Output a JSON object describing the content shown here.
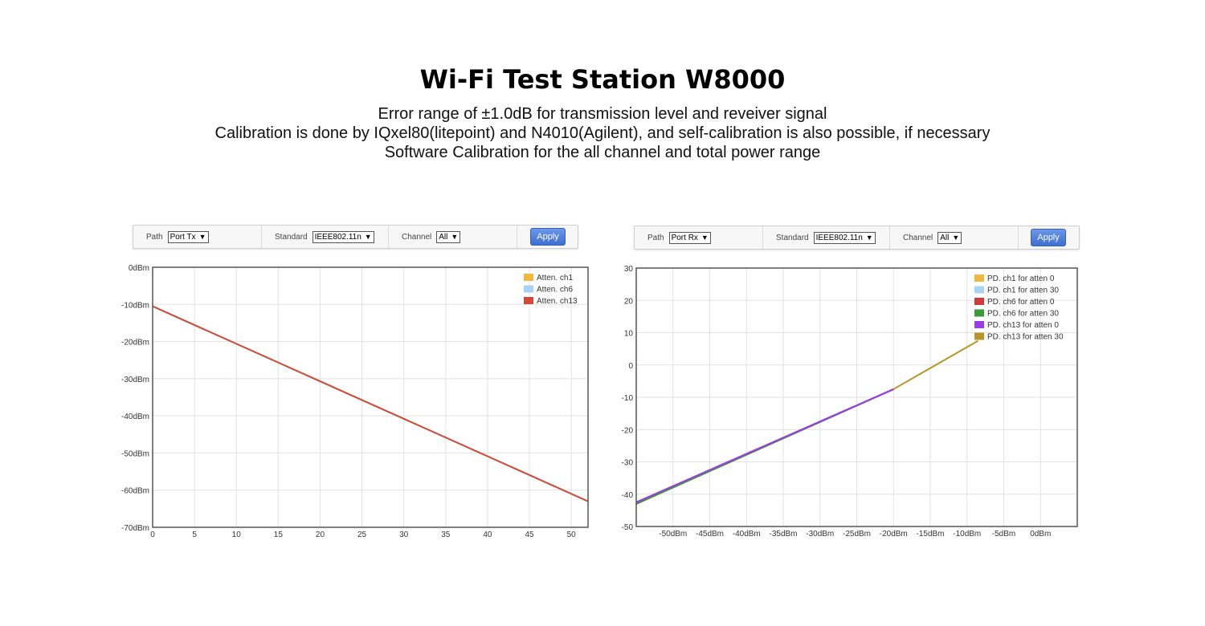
{
  "header": {
    "title": "Wi-Fi Test Station W8000",
    "lines": [
      "Error range of ±1.0dB for transmission level and reveiver signal",
      "Calibration is done by IQxel80(litepoint) and N4010(Agilent), and self-calibration is also possible, if necessary",
      "Software Calibration for the all channel and total power range"
    ]
  },
  "tx_toolbar": {
    "path_label": "Path",
    "path_value": "Port Tx",
    "standard_label": "Standard",
    "standard_value": "IEEE802.11n",
    "channel_label": "Channel",
    "channel_value": "All",
    "apply_label": "Apply"
  },
  "rx_toolbar": {
    "path_label": "Path",
    "path_value": "Port Rx",
    "standard_label": "Standard",
    "standard_value": "IEEE802.11n",
    "channel_label": "Channel",
    "channel_value": "All",
    "apply_label": "Apply"
  },
  "colors": {
    "accent": "#3f6fd0",
    "grid": "#e2e2e2",
    "frame": "#555555"
  },
  "chart_data": [
    {
      "type": "line",
      "title": "",
      "xlabel": "",
      "ylabel": "",
      "xlim": [
        0,
        52
      ],
      "ylim": [
        -70,
        0
      ],
      "grid": true,
      "legend": "top-right",
      "x_ticks": [
        0,
        5,
        10,
        15,
        20,
        25,
        30,
        35,
        40,
        45,
        50
      ],
      "x_tick_labels": [
        "0",
        "5",
        "10",
        "15",
        "20",
        "25",
        "30",
        "35",
        "40",
        "45",
        "50"
      ],
      "y_ticks": [
        0,
        -10,
        -20,
        -30,
        -40,
        -50,
        -60,
        -70
      ],
      "y_tick_labels": [
        "0dBm",
        "-10dBm",
        "-20dBm",
        "-30dBm",
        "-40dBm",
        "-50dBm",
        "-60dBm",
        "-70dBm"
      ],
      "series": [
        {
          "name": "Atten. ch1",
          "color": "#f0b840",
          "x": [
            0,
            52
          ],
          "y": [
            -10.5,
            -63.0
          ]
        },
        {
          "name": "Atten. ch6",
          "color": "#a9d3f5",
          "x": [
            0,
            52
          ],
          "y": [
            -10.5,
            -63.0
          ]
        },
        {
          "name": "Atten. ch13",
          "color": "#d04a3a",
          "x": [
            0,
            52
          ],
          "y": [
            -10.5,
            -63.0
          ]
        }
      ]
    },
    {
      "type": "line",
      "title": "",
      "xlabel": "",
      "ylabel": "",
      "xlim": [
        -55,
        5
      ],
      "ylim": [
        -50,
        30
      ],
      "grid": true,
      "legend": "top-right",
      "x_ticks": [
        -50,
        -45,
        -40,
        -35,
        -30,
        -25,
        -20,
        -15,
        -10,
        -5,
        0
      ],
      "x_tick_labels": [
        "-50dBm",
        "-45dBm",
        "-40dBm",
        "-35dBm",
        "-30dBm",
        "-25dBm",
        "-20dBm",
        "-15dBm",
        "-10dBm",
        "-5dBm",
        "0dBm"
      ],
      "y_ticks": [
        30,
        20,
        10,
        0,
        -10,
        -20,
        -30,
        -40,
        -50
      ],
      "y_tick_labels": [
        "30",
        "20",
        "10",
        "0",
        "-10",
        "-20",
        "-30",
        "-40",
        "-50"
      ],
      "series": [
        {
          "name": "PD. ch1 for atten 0",
          "color": "#f0b840",
          "x": [
            -55,
            -20
          ],
          "y": [
            -43,
            -7.5
          ]
        },
        {
          "name": "PD. ch1 for atten 30",
          "color": "#a9d3f5",
          "x": [
            -55,
            -20
          ],
          "y": [
            -43,
            -7.5
          ]
        },
        {
          "name": "PD. ch6 for atten 0",
          "color": "#d03a3a",
          "x": [
            -55,
            -20
          ],
          "y": [
            -43,
            -7.5
          ]
        },
        {
          "name": "PD. ch6 for atten 30",
          "color": "#3a9a3a",
          "x": [
            -55,
            -20
          ],
          "y": [
            -43,
            -7.5
          ]
        },
        {
          "name": "PD. ch13 for atten 0",
          "color": "#9b3ae8",
          "x": [
            -55,
            -20
          ],
          "y": [
            -42.5,
            -7.5
          ]
        },
        {
          "name": "PD. ch13 for atten 30",
          "color": "#b8962a",
          "x": [
            -20,
            -8.5
          ],
          "y": [
            -7.5,
            7.5
          ]
        }
      ]
    }
  ]
}
